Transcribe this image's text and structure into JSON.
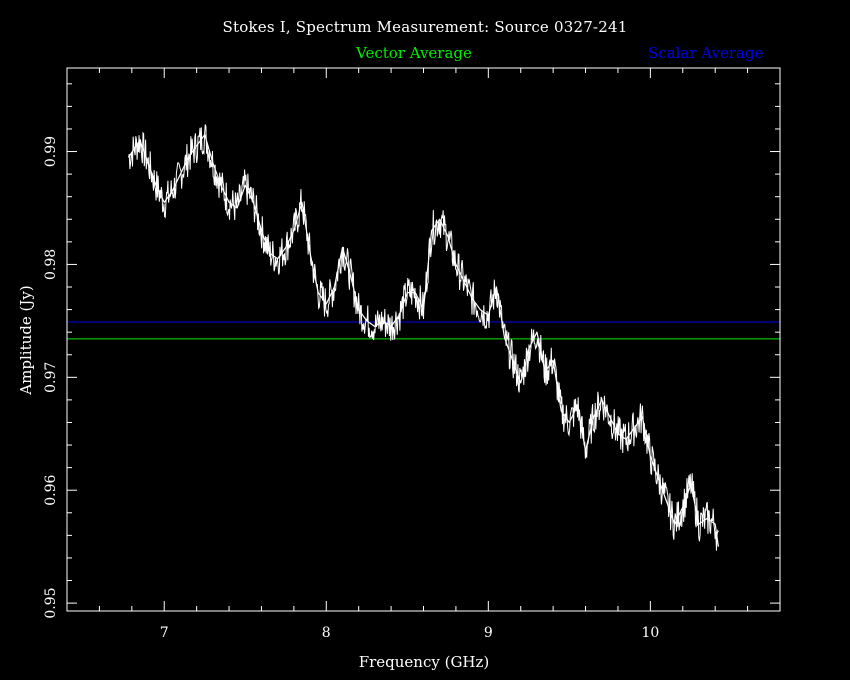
{
  "chart_data": {
    "type": "line",
    "title": "Stokes I, Spectrum Measurement: Source 0327-241",
    "xlabel": "Frequency (GHz)",
    "ylabel": "Amplitude (Jy)",
    "xlim": [
      6.4,
      10.8
    ],
    "ylim": [
      0.9493,
      0.9974
    ],
    "xticks": [
      "7",
      "8",
      "9",
      "10"
    ],
    "yticks": [
      "0.95",
      "0.96",
      "0.97",
      "0.98",
      "0.99"
    ],
    "reference_lines": [
      {
        "name": "Vector Average",
        "y": 0.9734,
        "color": "#00ee00"
      },
      {
        "name": "Scalar Average",
        "y": 0.9749,
        "color": "#0000ee"
      }
    ],
    "series": [
      {
        "color": "#ffffff",
        "x": [
          6.78,
          6.85,
          6.9,
          6.95,
          7.0,
          7.05,
          7.1,
          7.15,
          7.2,
          7.25,
          7.3,
          7.35,
          7.4,
          7.45,
          7.5,
          7.55,
          7.6,
          7.65,
          7.7,
          7.75,
          7.8,
          7.85,
          7.9,
          7.95,
          8.0,
          8.05,
          8.1,
          8.15,
          8.2,
          8.25,
          8.3,
          8.35,
          8.4,
          8.45,
          8.5,
          8.55,
          8.6,
          8.65,
          8.7,
          8.75,
          8.8,
          8.85,
          8.9,
          8.95,
          9.0,
          9.05,
          9.1,
          9.15,
          9.2,
          9.25,
          9.3,
          9.35,
          9.4,
          9.45,
          9.5,
          9.55,
          9.6,
          9.65,
          9.7,
          9.75,
          9.8,
          9.85,
          9.9,
          9.95,
          10.0,
          10.05,
          10.1,
          10.15,
          10.2,
          10.25,
          10.3,
          10.35,
          10.4,
          10.42
        ],
        "y": [
          0.9895,
          0.991,
          0.989,
          0.987,
          0.9855,
          0.9865,
          0.988,
          0.9895,
          0.9905,
          0.9915,
          0.989,
          0.987,
          0.9855,
          0.985,
          0.987,
          0.9855,
          0.983,
          0.981,
          0.9805,
          0.9815,
          0.983,
          0.9855,
          0.981,
          0.9775,
          0.9765,
          0.978,
          0.9815,
          0.979,
          0.976,
          0.975,
          0.9745,
          0.975,
          0.9745,
          0.9755,
          0.9775,
          0.9775,
          0.976,
          0.983,
          0.984,
          0.9825,
          0.98,
          0.9785,
          0.977,
          0.976,
          0.9755,
          0.978,
          0.9735,
          0.9715,
          0.9695,
          0.9725,
          0.974,
          0.9705,
          0.9715,
          0.967,
          0.966,
          0.9675,
          0.9635,
          0.9665,
          0.968,
          0.9665,
          0.965,
          0.9645,
          0.9655,
          0.9665,
          0.963,
          0.961,
          0.959,
          0.957,
          0.9585,
          0.9605,
          0.957,
          0.9575,
          0.957,
          0.955
        ]
      }
    ]
  }
}
